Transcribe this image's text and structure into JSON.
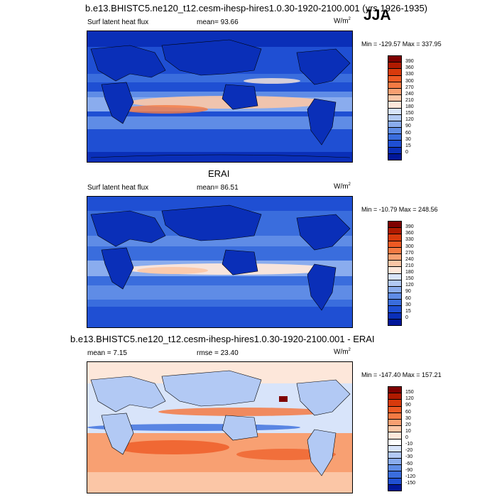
{
  "figure": {
    "season": "JJA",
    "panel1_title": "b.e13.BHISTC5.ne120_t12.cesm-ihesp-hires1.0.30-1920-2100.001 (yrs 1926-1935)",
    "panel2_title": "ERAI",
    "panel3_title": "b.e13.BHISTC5.ne120_t12.cesm-ihesp-hires1.0.30-1920-2100.001 - ERAI"
  },
  "panels": [
    {
      "left_label": "Surf latent heat flux",
      "center_label": "mean=  93.66",
      "units": "W/m",
      "units_sup": "2",
      "minmax": "Min = -129.57 Max = 337.95",
      "levels": [
        "390",
        "360",
        "330",
        "300",
        "270",
        "240",
        "210",
        "180",
        "150",
        "120",
        "90",
        "60",
        "30",
        "15",
        "0"
      ]
    },
    {
      "left_label": "Surf latent heat flux",
      "center_label": "mean=  86.51",
      "units": "W/m",
      "units_sup": "2",
      "minmax": "Min = -10.79 Max = 248.56",
      "levels": [
        "390",
        "360",
        "330",
        "300",
        "270",
        "240",
        "210",
        "180",
        "150",
        "120",
        "90",
        "60",
        "30",
        "15",
        "0"
      ]
    },
    {
      "left_label": "mean =   7.15",
      "center_label": "rmse =  23.40",
      "units": "W/m",
      "units_sup": "2",
      "minmax": "Min = -147.40 Max = 157.21",
      "levels": [
        "150",
        "120",
        "90",
        "60",
        "30",
        "20",
        "10",
        "0",
        "-10",
        "-20",
        "-30",
        "-60",
        "-90",
        "-120",
        "-150"
      ]
    }
  ],
  "colors": {
    "flux_scale": [
      "#7f0000",
      "#b01a00",
      "#d83a0c",
      "#ee5a24",
      "#f47a43",
      "#f8a072",
      "#fbc6a6",
      "#fde7da",
      "#d8e4fa",
      "#b2c9f4",
      "#8aacee",
      "#5f8ce6",
      "#3a6ddd",
      "#1f4fd3",
      "#0a2fb8",
      "#00169a"
    ],
    "diff_scale": [
      "#7f0000",
      "#b01a00",
      "#d83a0c",
      "#ee5a24",
      "#f47a43",
      "#f8a072",
      "#fbc6a6",
      "#fde7da",
      "#ffffff",
      "#d8e4fa",
      "#b2c9f4",
      "#8aacee",
      "#5f8ce6",
      "#3a6ddd",
      "#1f4fd3",
      "#00169a"
    ]
  }
}
